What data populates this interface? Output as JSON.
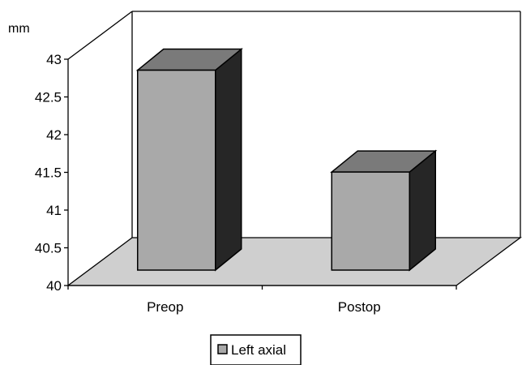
{
  "chart_data": {
    "type": "bar",
    "style": "3d",
    "title": "",
    "xlabel": "",
    "ylabel": "mm",
    "ylim": [
      40,
      43
    ],
    "yticks": [
      40,
      40.5,
      41,
      41.5,
      42,
      42.5,
      43
    ],
    "ytick_labels": [
      "40",
      "40.5",
      "41",
      "41.5",
      "42",
      "42.5",
      "43"
    ],
    "categories": [
      "Preop",
      "Postop"
    ],
    "series": [
      {
        "name": "Left axial",
        "values": [
          42.65,
          41.3
        ]
      }
    ],
    "grid": false,
    "legend_position": "bottom",
    "colors": {
      "bar_front": "#a9a9a9",
      "bar_top": "#7a7a7a",
      "bar_side": "#262626",
      "floor": "#cfcfcf",
      "legend_swatch": "#a9a9a9"
    }
  }
}
